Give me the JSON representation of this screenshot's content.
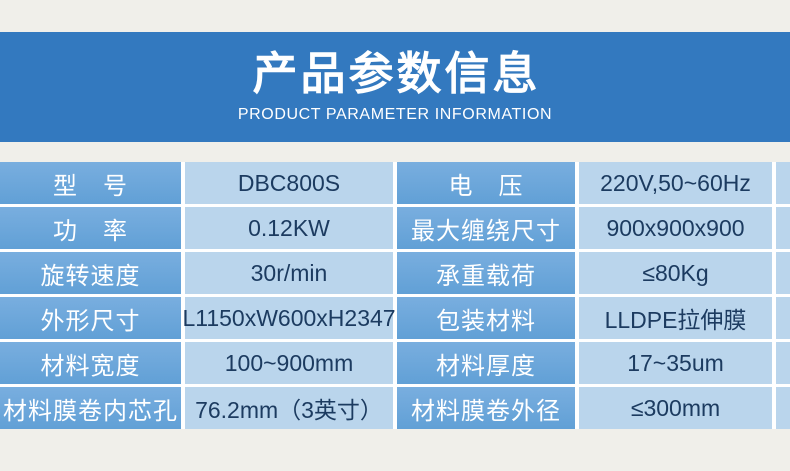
{
  "theme": {
    "page_bg": "#f0efea",
    "banner_bg": "#3379bf",
    "banner_text": "#ffffff",
    "label_top": "#79aedf",
    "label_bg": "#61a0d6",
    "value_bg": "#bad5ec",
    "value_text": "#1c3b60",
    "gap_color": "#ffffff"
  },
  "banner": {
    "title": "产品参数信息",
    "subtitle": "PRODUCT PARAMETER INFORMATION"
  },
  "table": {
    "rows": [
      {
        "label1": "型　号",
        "value1": "DBC800S",
        "label2": "电　压",
        "value2": "220V,50~60Hz"
      },
      {
        "label1": "功　率",
        "value1": "0.12KW",
        "label2": "最大缠绕尺寸",
        "value2": "900x900x900"
      },
      {
        "label1": "旋转速度",
        "value1": "30r/min",
        "label2": "承重载荷",
        "value2": "≤80Kg"
      },
      {
        "label1": "外形尺寸",
        "value1": "L1150xW600xH2347",
        "label2": "包装材料",
        "value2": "LLDPE拉伸膜"
      },
      {
        "label1": "材料宽度",
        "value1": "100~900mm",
        "label2": "材料厚度",
        "value2": "17~35um"
      },
      {
        "label1": "材料膜卷内芯孔",
        "value1": "76.2mm（3英寸）",
        "label2": "材料膜卷外径",
        "value2": "≤300mm"
      }
    ]
  }
}
